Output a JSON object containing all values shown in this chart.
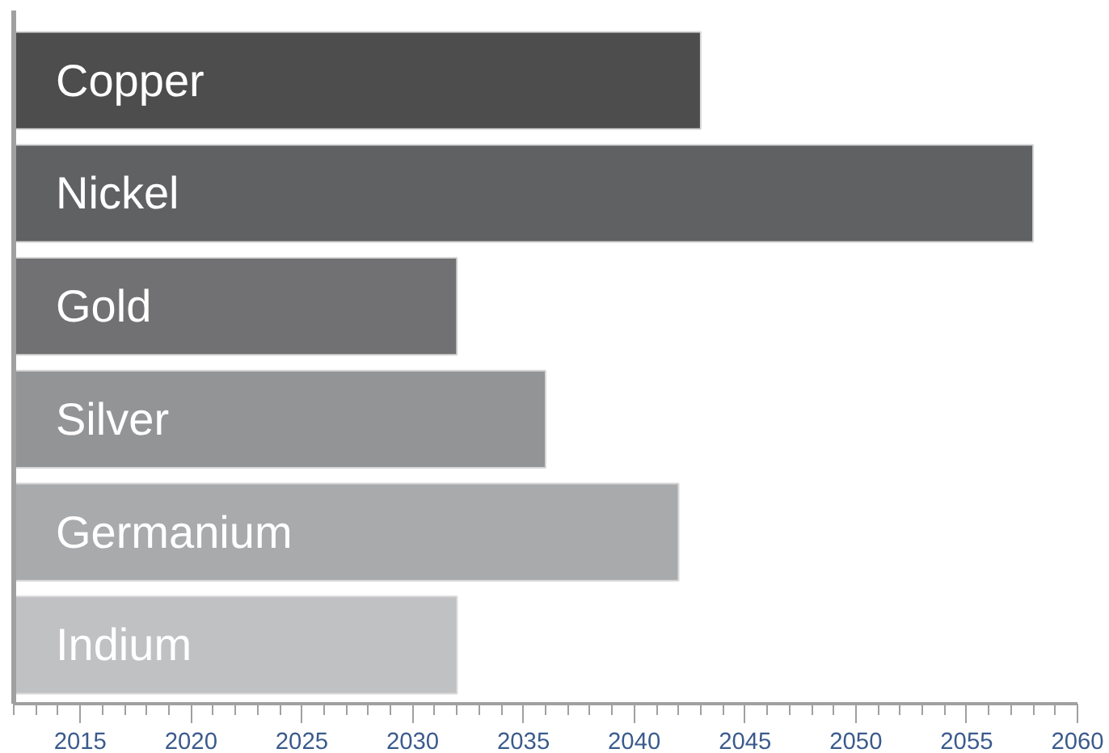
{
  "chart_data": {
    "type": "bar",
    "orientation": "horizontal",
    "categories": [
      "Copper",
      "Nickel",
      "Gold",
      "Silver",
      "Germanium",
      "Indium"
    ],
    "values": [
      2043,
      2058,
      2032,
      2036,
      2042,
      2032
    ],
    "colors": [
      "#4d4d4d",
      "#606163",
      "#717173",
      "#939496",
      "#a9aaac",
      "#c0c1c3"
    ],
    "xlim": [
      2012,
      2060
    ],
    "xticks": [
      2015,
      2020,
      2025,
      2030,
      2035,
      2040,
      2045,
      2050,
      2055,
      2060
    ],
    "grid": false
  }
}
